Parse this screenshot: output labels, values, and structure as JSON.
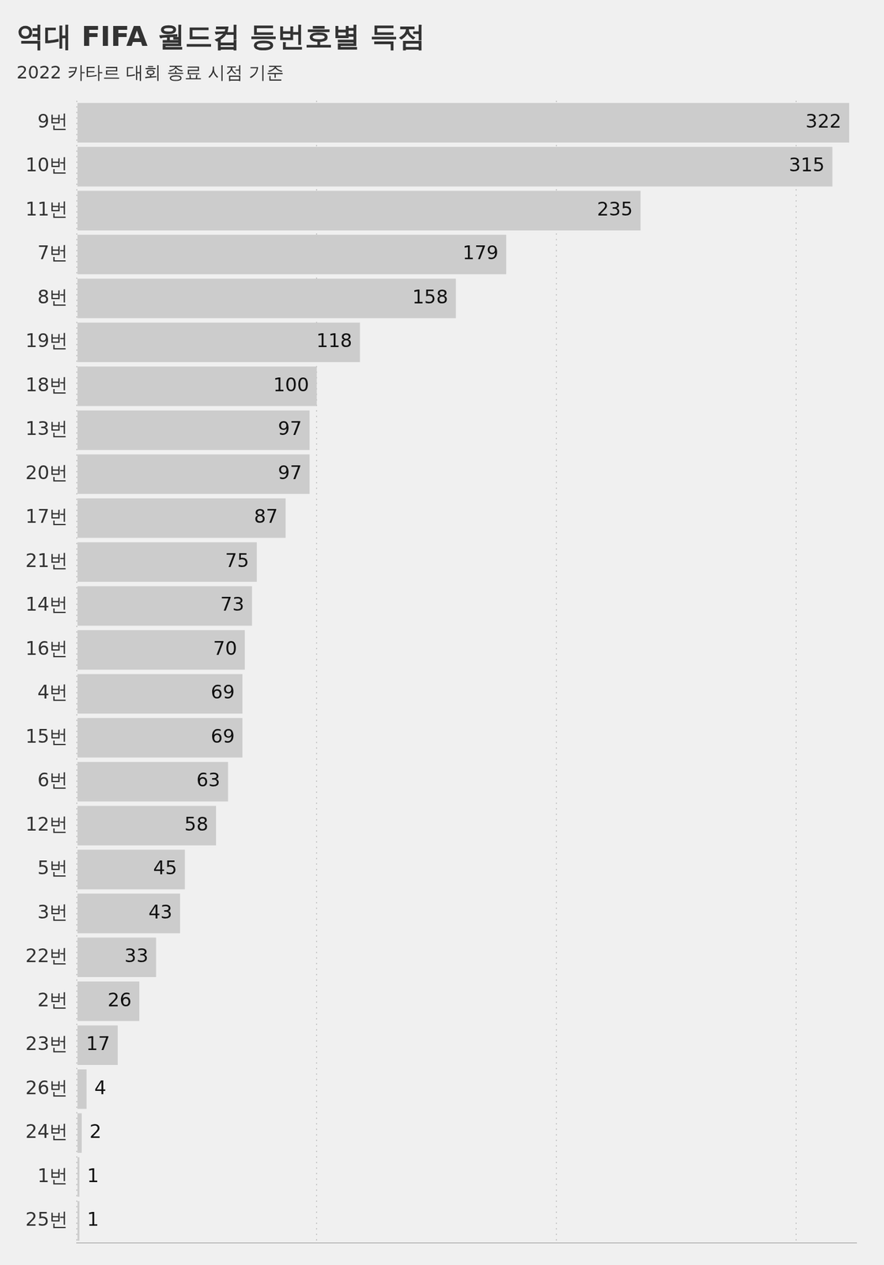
{
  "chart_data": {
    "type": "bar",
    "orientation": "horizontal",
    "title": "역대 FIFA 월드컵 등번호별 득점",
    "subtitle": "2022 카타르 대회 종료 시점 기준",
    "categories": [
      "9번",
      "10번",
      "11번",
      "7번",
      "8번",
      "19번",
      "18번",
      "13번",
      "20번",
      "17번",
      "21번",
      "14번",
      "16번",
      "4번",
      "15번",
      "6번",
      "12번",
      "5번",
      "3번",
      "22번",
      "2번",
      "23번",
      "26번",
      "24번",
      "1번",
      "25번"
    ],
    "values": [
      322,
      315,
      235,
      179,
      158,
      118,
      100,
      97,
      97,
      87,
      75,
      73,
      70,
      69,
      69,
      63,
      58,
      45,
      43,
      33,
      26,
      17,
      4,
      2,
      1,
      1
    ],
    "color": "#cccccc",
    "xlim": [
      0,
      325
    ],
    "xticks": [
      0,
      100,
      200,
      300
    ],
    "grid": true,
    "data_labels": true,
    "tick_labels": "y"
  }
}
